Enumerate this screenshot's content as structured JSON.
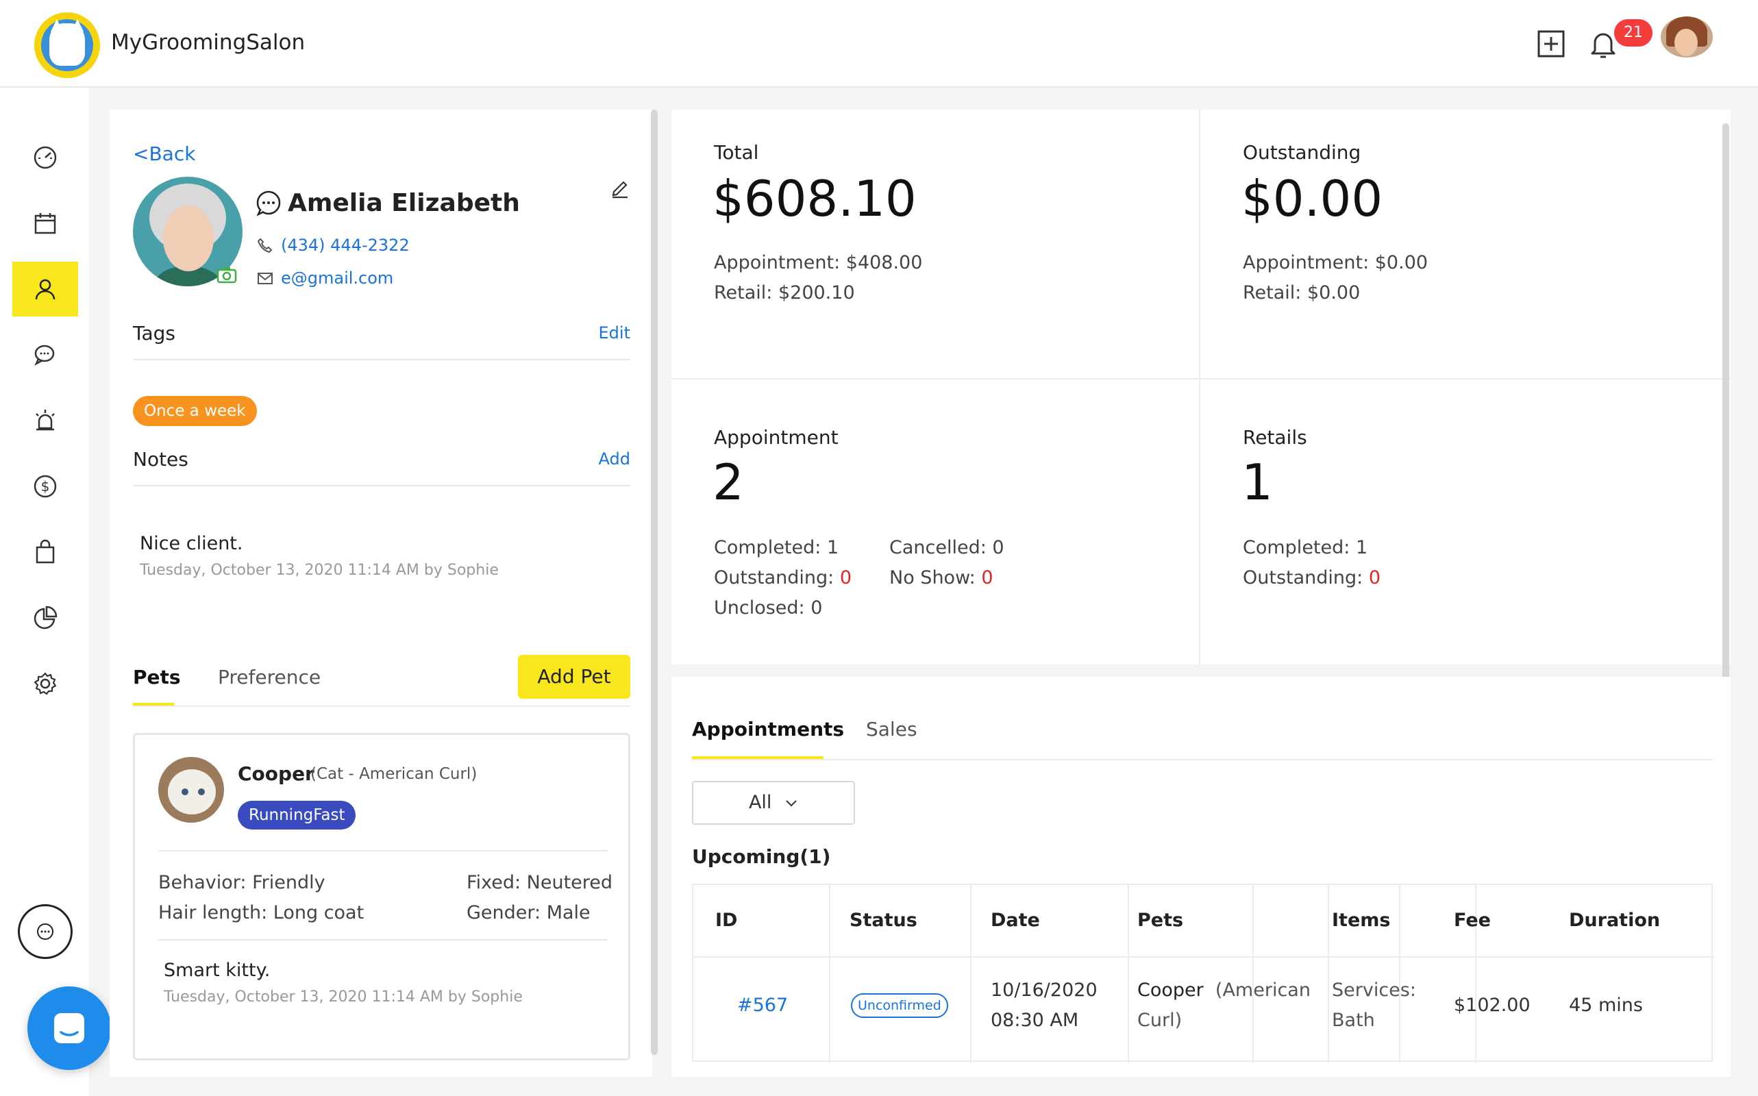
{
  "header": {
    "app_title": "MyGroomingSalon",
    "notification_count": "21"
  },
  "client": {
    "back_label": "<Back",
    "name": "Amelia Elizabeth",
    "phone": "(434) 444-2322",
    "email": "e@gmail.com",
    "tags_title": "Tags",
    "tags_action": "Edit",
    "tags": [
      "Once a week"
    ],
    "notes_title": "Notes",
    "notes_action": "Add",
    "note": {
      "text": "Nice client.",
      "meta": "Tuesday, October 13, 2020 11:14 AM by Sophie"
    },
    "tabs": {
      "pets": "Pets",
      "preference": "Preference"
    },
    "add_pet_label": "Add Pet",
    "pet": {
      "name": "Cooper",
      "breed": "(Cat - American Curl)",
      "tag": "RunningFast",
      "behavior": "Behavior: Friendly",
      "hair_length": "Hair length: Long coat",
      "fixed": "Fixed: Neutered",
      "gender": "Gender: Male",
      "note_text": "Smart kitty.",
      "note_meta": "Tuesday, October 13, 2020 11:14 AM by Sophie"
    }
  },
  "stats": {
    "total": {
      "label": "Total",
      "value": "$608.10",
      "appointment": "Appointment: $408.00",
      "retail": "Retail: $200.10"
    },
    "outstanding": {
      "label": "Outstanding",
      "value": "$0.00",
      "appointment": "Appointment: $0.00",
      "retail": "Retail: $0.00"
    },
    "appointment": {
      "label": "Appointment",
      "value": "2",
      "completed": "Completed: 1",
      "outstanding_label": "Outstanding: ",
      "outstanding_value": "0",
      "unclosed": "Unclosed: 0",
      "cancelled": "Cancelled: 0",
      "noshow_label": "No Show: ",
      "noshow_value": "0"
    },
    "retails": {
      "label": "Retails",
      "value": "1",
      "completed": "Completed: 1",
      "outstanding_label": "Outstanding: ",
      "outstanding_value": "0"
    }
  },
  "appointments": {
    "tabs": {
      "appointments": "Appointments",
      "sales": "Sales"
    },
    "filter": "All",
    "upcoming_label": "Upcoming(1)",
    "columns": [
      "ID",
      "Status",
      "Date",
      "Pets",
      "Items",
      "Fee",
      "Duration"
    ],
    "rows": [
      {
        "id": "#567",
        "status": "Unconfirmed",
        "date_line1": "10/16/2020",
        "date_line2": "08:30 AM",
        "pet_name": "Cooper",
        "pet_breed_line1": "(American",
        "pet_breed_line2": "Curl)",
        "items_line1": "Services:",
        "items_line2": "Bath",
        "fee": "$102.00",
        "duration": "45 mins"
      }
    ]
  },
  "colors": {
    "accent_yellow": "#f8e71c",
    "link_blue": "#1a73d9",
    "tag_orange": "#f7931e",
    "pet_tag_blue": "#3a4bbf",
    "alert_red": "#e32424"
  }
}
